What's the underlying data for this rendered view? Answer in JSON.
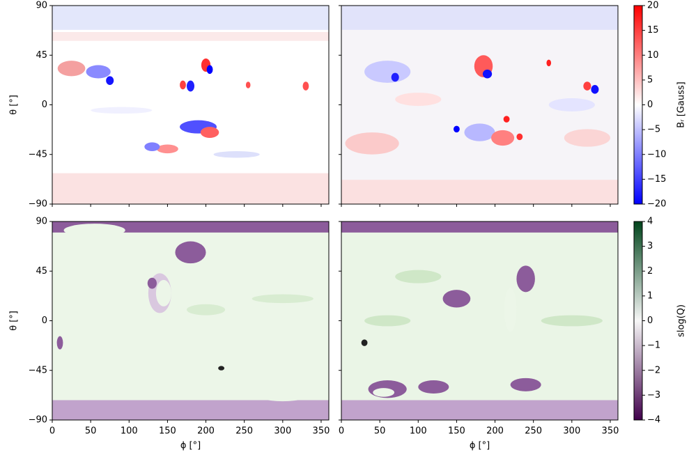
{
  "chart_data": [
    {
      "type": "heatmap",
      "xlim": [
        0,
        360
      ],
      "ylim": [
        -90,
        90
      ],
      "xticks": [
        0,
        50,
        100,
        150,
        200,
        250,
        300,
        350
      ],
      "yticks": [
        {
          "value": -90,
          "label": "−90"
        },
        {
          "value": -45,
          "label": "−45"
        },
        0,
        45,
        90
      ],
      "ylabel": "θ [°]"
    },
    {
      "type": "heatmap",
      "xlim": [
        0,
        360
      ],
      "ylim": [
        -90,
        90
      ],
      "xticks": [
        0,
        50,
        100,
        150,
        200,
        250,
        300,
        350
      ],
      "yticks": [
        -90,
        -45,
        0,
        45,
        90
      ],
      "colorbar": {
        "label": "Bᵣ [Gauss]",
        "clim": [
          -20,
          20
        ],
        "colormap": [
          "#0000ff",
          "#ffffff",
          "#ff0000"
        ],
        "ticks": [
          {
            "value": -20,
            "label": "−20"
          },
          {
            "value": -15,
            "label": "−15"
          },
          {
            "value": -10,
            "label": "−10"
          },
          {
            "value": -5,
            "label": "−5"
          },
          0,
          5,
          10,
          15,
          20
        ]
      }
    },
    {
      "type": "heatmap",
      "xlim": [
        0,
        360
      ],
      "ylim": [
        -90,
        90
      ],
      "xticks": [
        0,
        50,
        100,
        150,
        200,
        250,
        300,
        350
      ],
      "yticks": [
        {
          "value": -90,
          "label": "−90"
        },
        {
          "value": -45,
          "label": "−45"
        },
        0,
        45,
        90
      ],
      "ylabel": "θ [°]",
      "xlabel": "ϕ [°]"
    },
    {
      "type": "heatmap",
      "xlim": [
        0,
        360
      ],
      "ylim": [
        -90,
        90
      ],
      "xticks": [
        0,
        50,
        100,
        150,
        200,
        250,
        300,
        350
      ],
      "yticks": [
        -90,
        -45,
        0,
        45,
        90
      ],
      "xlabel": "ϕ [°]",
      "colorbar": {
        "label": "slog(Q)",
        "clim": [
          -4,
          4
        ],
        "colormap": [
          "#40004b",
          "#f7f7f7",
          "#00441b"
        ],
        "ticks": [
          {
            "value": -4,
            "label": "−4"
          },
          {
            "value": -3,
            "label": "−3"
          },
          {
            "value": -2,
            "label": "−2"
          },
          {
            "value": -1,
            "label": "−1"
          },
          0,
          1,
          2,
          3,
          4
        ]
      }
    }
  ]
}
